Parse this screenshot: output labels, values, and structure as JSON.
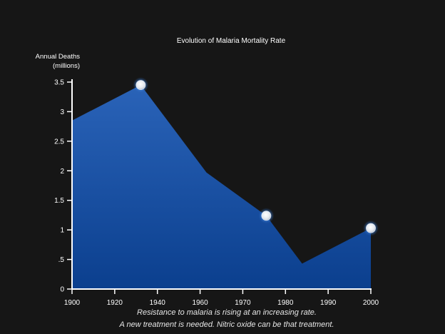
{
  "chart_data": {
    "type": "area",
    "title": "Evolution of Malaria Mortality Rate",
    "ylabel_lines": [
      "Annual Deaths",
      "(millions)"
    ],
    "xlabel": "",
    "x_ticks": [
      "1900",
      "1920",
      "1940",
      "1960",
      "1970",
      "1980",
      "1990",
      "2000"
    ],
    "y_ticks": [
      "0",
      ".5",
      "1",
      "1.5",
      "2",
      "2.5",
      "3",
      "3.5"
    ],
    "ylim": [
      0,
      3.5
    ],
    "series": [
      {
        "x": [
          1900,
          1923,
          1945,
          1965,
          1977,
          2000
        ],
        "values": [
          2.85,
          3.45,
          1.97,
          1.24,
          0.43,
          1.03
        ]
      }
    ],
    "highlighted_points": [
      {
        "x": 1923,
        "y": 3.45
      },
      {
        "x": 1965,
        "y": 1.24
      },
      {
        "x": 2000,
        "y": 1.03
      }
    ],
    "grid": false,
    "colors": {
      "fill_top": "#2a63b8",
      "fill_bottom": "#0b3f8e",
      "axis": "#ffffff",
      "background": "#161616"
    }
  },
  "captions": [
    "Resistance to malaria is rising at an increasing rate.",
    "A new treatment is needed. Nitric oxide can be that treatment."
  ]
}
